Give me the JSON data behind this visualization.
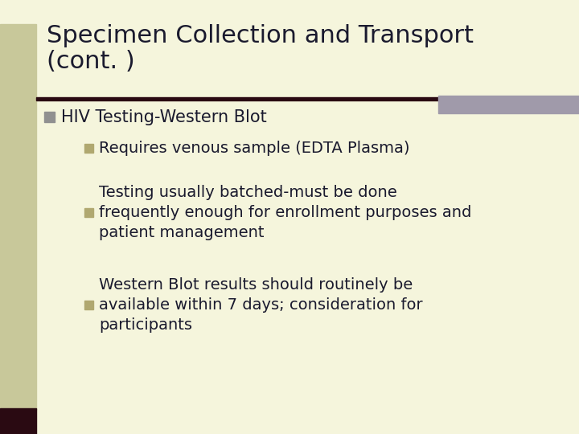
{
  "title_line1": "Specimen Collection and Transport",
  "title_line2": "(cont. )",
  "background_color": "#f5f5dc",
  "left_bar_color": "#c8c89a",
  "left_bar_bottom_color": "#2a0a12",
  "title_color": "#1a1a2e",
  "separator_line_color": "#2a0a12",
  "right_rect_color": "#a09aaa",
  "bullet1_sq_color": "#909090",
  "bullet2_sq_color": "#b0a870",
  "title_fontsize": 22,
  "body_fontsize": 14,
  "bullet1": "HIV Testing-Western Blot",
  "bullet2a": "Requires venous sample (EDTA Plasma)",
  "bullet2b": "Testing usually batched-must be done\nfrequently enough for enrollment purposes and\npatient management",
  "bullet2c": "Western Blot results should routinely be\navailable within 7 days; consideration for\nparticipants"
}
